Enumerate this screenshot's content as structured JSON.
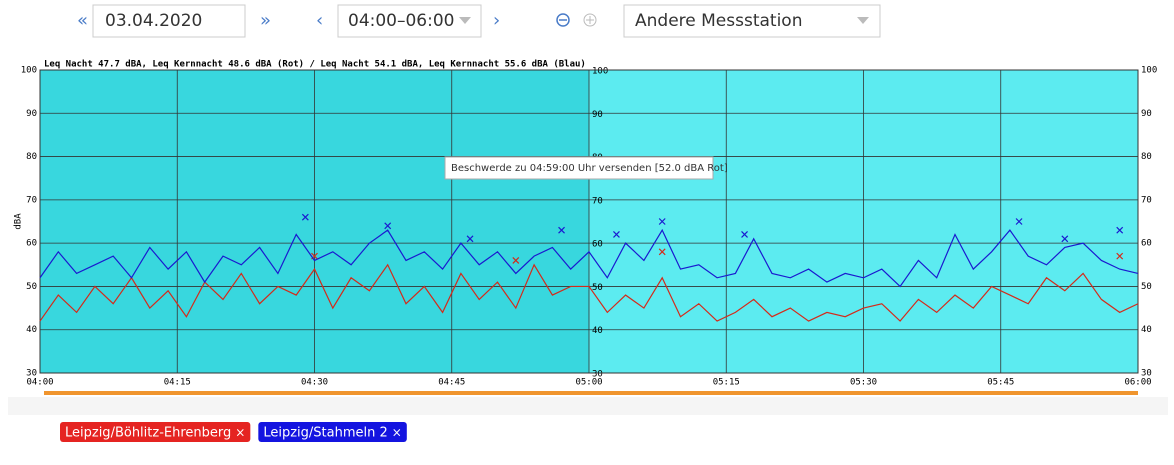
{
  "toolbar": {
    "prev_day": "«",
    "date": "03.04.2020",
    "next_day": "»",
    "prev_range": "‹",
    "range": "04:00–06:00",
    "next_range": "›",
    "station": "Andere Messstation"
  },
  "chart_data": {
    "type": "line",
    "title": "Leq Nacht 47.7 dBA, Leq Kernnacht 48.6 dBA (Rot) / Leq Nacht 54.1 dBA, Leq Kernnacht 55.6 dBA (Blau)",
    "y_label": "dBA",
    "x": [
      "04:00",
      "04:02",
      "04:04",
      "04:06",
      "04:08",
      "04:10",
      "04:12",
      "04:14",
      "04:16",
      "04:18",
      "04:20",
      "04:22",
      "04:24",
      "04:26",
      "04:28",
      "04:30",
      "04:32",
      "04:34",
      "04:36",
      "04:38",
      "04:40",
      "04:42",
      "04:44",
      "04:46",
      "04:48",
      "04:50",
      "04:52",
      "04:54",
      "04:56",
      "04:58",
      "05:00",
      "05:02",
      "05:04",
      "05:06",
      "05:08",
      "05:10",
      "05:12",
      "05:14",
      "05:16",
      "05:18",
      "05:20",
      "05:22",
      "05:24",
      "05:26",
      "05:28",
      "05:30",
      "05:32",
      "05:34",
      "05:36",
      "05:38",
      "05:40",
      "05:42",
      "05:44",
      "05:46",
      "05:48",
      "05:50",
      "05:52",
      "05:54",
      "05:56",
      "05:58",
      "06:00"
    ],
    "xlim": [
      "04:00",
      "06:00"
    ],
    "xticks": [
      "04:00",
      "04:15",
      "04:30",
      "04:45",
      "05:00",
      "05:15",
      "05:30",
      "05:45",
      "06:00"
    ],
    "ylim": [
      30,
      100
    ],
    "yticks": [
      30,
      40,
      50,
      60,
      70,
      80,
      90,
      100
    ],
    "grid": true,
    "highlight": [
      "04:00",
      "05:00"
    ],
    "series": [
      {
        "name": "Leipzig/Böhlitz-Ehrenberg",
        "color": "#d42a1a",
        "values": [
          42,
          48,
          44,
          50,
          46,
          52,
          45,
          49,
          43,
          51,
          47,
          53,
          46,
          50,
          48,
          54,
          45,
          52,
          49,
          55,
          46,
          50,
          44,
          53,
          47,
          51,
          45,
          55,
          48,
          50,
          50,
          44,
          48,
          45,
          52,
          43,
          46,
          42,
          44,
          47,
          43,
          45,
          42,
          44,
          43,
          45,
          46,
          42,
          47,
          44,
          48,
          45,
          50,
          48,
          46,
          52,
          49,
          53,
          47,
          44,
          46
        ],
        "peak_x": [
          "04:30",
          "04:52",
          "05:08",
          "05:58"
        ],
        "peak_values": [
          57,
          56,
          58,
          57
        ]
      },
      {
        "name": "Leipzig/Stahmeln 2",
        "color": "#1a1ad0",
        "values": [
          52,
          58,
          53,
          55,
          57,
          52,
          59,
          54,
          58,
          51,
          57,
          55,
          59,
          53,
          62,
          56,
          58,
          55,
          60,
          63,
          56,
          58,
          54,
          60,
          55,
          58,
          53,
          57,
          59,
          54,
          58,
          52,
          60,
          56,
          63,
          54,
          55,
          52,
          53,
          61,
          53,
          52,
          54,
          51,
          53,
          52,
          54,
          50,
          56,
          52,
          62,
          54,
          58,
          63,
          57,
          55,
          59,
          60,
          56,
          54,
          53
        ],
        "peak_x": [
          "04:29",
          "04:38",
          "04:47",
          "04:57",
          "05:03",
          "05:08",
          "05:17",
          "05:47",
          "05:52",
          "05:58"
        ],
        "peak_values": [
          66,
          64,
          61,
          63,
          62,
          65,
          62,
          65,
          61,
          63
        ]
      }
    ],
    "tooltip": "Beschwerde zu 04:59:00 Uhr versenden [52.0 dBA Rot]"
  },
  "chip_close": "×"
}
